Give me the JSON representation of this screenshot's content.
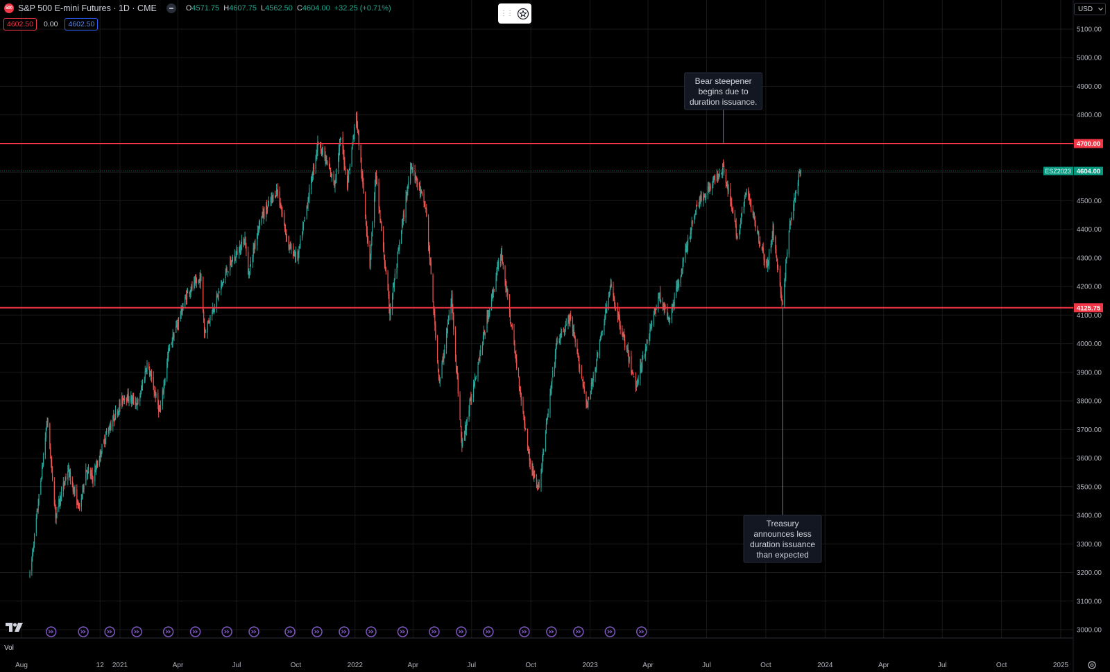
{
  "header": {
    "symbol_badge": "500",
    "title": "S&P 500 E-mini Futures · 1D · CME",
    "ohlc": {
      "o_label": "O",
      "o_value": "4571.75",
      "h_label": "H",
      "h_value": "4607.75",
      "l_label": "L",
      "l_value": "4562.50",
      "c_label": "C",
      "c_value": "4604.00",
      "change": "+32.25 (+0.71%)"
    },
    "sell_price": "4602.50",
    "spread": "0.00",
    "buy_price": "4602.50"
  },
  "currency": {
    "label": "USD"
  },
  "volume_label": "Vol",
  "colors": {
    "background": "#000000",
    "up": "#26a69a",
    "down": "#ef5350",
    "hline": "#f23645",
    "last_price": "#089981",
    "event_marker": "#7e57c2",
    "grid": "#1a1a1a"
  },
  "chart_data": {
    "type": "candlestick",
    "title": "S&P 500 E-mini Futures · 1D · CME",
    "ylim": [
      2950,
      5175
    ],
    "y_ticks": [
      "5100.00",
      "5000.00",
      "4900.00",
      "4800.00",
      "4700.00",
      "4600.00",
      "4500.00",
      "4400.00",
      "4300.00",
      "4200.00",
      "4100.00",
      "4000.00",
      "3900.00",
      "3800.00",
      "3700.00",
      "3600.00",
      "3500.00",
      "3400.00",
      "3300.00",
      "3200.00",
      "3100.00",
      "3000.00"
    ],
    "x_ticks": [
      {
        "date": "2020-08-01",
        "label": "Aug"
      },
      {
        "date": "2020-12-01",
        "label": "12"
      },
      {
        "date": "2021-01-01",
        "label": "2021"
      },
      {
        "date": "2021-04-01",
        "label": "Apr"
      },
      {
        "date": "2021-07-01",
        "label": "Jul"
      },
      {
        "date": "2021-10-01",
        "label": "Oct"
      },
      {
        "date": "2022-01-01",
        "label": "2022"
      },
      {
        "date": "2022-04-01",
        "label": "Apr"
      },
      {
        "date": "2022-07-01",
        "label": "Jul"
      },
      {
        "date": "2022-10-01",
        "label": "Oct"
      },
      {
        "date": "2023-01-01",
        "label": "2023"
      },
      {
        "date": "2023-04-01",
        "label": "Apr"
      },
      {
        "date": "2023-07-01",
        "label": "Jul"
      },
      {
        "date": "2023-10-01",
        "label": "Oct"
      },
      {
        "date": "2024-01-01",
        "label": "2024"
      },
      {
        "date": "2024-04-01",
        "label": "Apr"
      },
      {
        "date": "2024-07-01",
        "label": "Jul"
      },
      {
        "date": "2024-10-01",
        "label": "Oct"
      },
      {
        "date": "2025-01-01",
        "label": "2025"
      }
    ],
    "series_path": [
      [
        "2020-08-14",
        3190
      ],
      [
        "2020-09-02",
        3560
      ],
      [
        "2020-09-10",
        3740
      ],
      [
        "2020-09-23",
        3400
      ],
      [
        "2020-10-12",
        3560
      ],
      [
        "2020-10-30",
        3420
      ],
      [
        "2020-11-09",
        3560
      ],
      [
        "2020-11-20",
        3530
      ],
      [
        "2020-12-10",
        3680
      ],
      [
        "2021-01-08",
        3820
      ],
      [
        "2021-01-29",
        3790
      ],
      [
        "2021-02-12",
        3930
      ],
      [
        "2021-03-04",
        3760
      ],
      [
        "2021-03-18",
        3980
      ],
      [
        "2021-04-16",
        4180
      ],
      [
        "2021-05-07",
        4230
      ],
      [
        "2021-05-12",
        4040
      ],
      [
        "2021-06-15",
        4250
      ],
      [
        "2021-07-14",
        4370
      ],
      [
        "2021-07-19",
        4240
      ],
      [
        "2021-08-06",
        4430
      ],
      [
        "2021-08-31",
        4530
      ],
      [
        "2021-09-02",
        4540
      ],
      [
        "2021-09-20",
        4340
      ],
      [
        "2021-10-04",
        4300
      ],
      [
        "2021-11-05",
        4710
      ],
      [
        "2021-11-30",
        4560
      ],
      [
        "2021-12-10",
        4720
      ],
      [
        "2021-12-20",
        4560
      ],
      [
        "2022-01-03",
        4800
      ],
      [
        "2022-01-24",
        4280
      ],
      [
        "2022-02-02",
        4590
      ],
      [
        "2022-02-24",
        4110
      ],
      [
        "2022-03-29",
        4630
      ],
      [
        "2022-04-21",
        4470
      ],
      [
        "2022-05-12",
        3860
      ],
      [
        "2022-05-31",
        4160
      ],
      [
        "2022-06-16",
        3640
      ],
      [
        "2022-07-06",
        3880
      ],
      [
        "2022-08-16",
        4320
      ],
      [
        "2022-09-30",
        3580
      ],
      [
        "2022-10-13",
        3490
      ],
      [
        "2022-11-10",
        4000
      ],
      [
        "2022-12-01",
        4090
      ],
      [
        "2022-12-28",
        3780
      ],
      [
        "2023-02-02",
        4200
      ],
      [
        "2023-03-13",
        3850
      ],
      [
        "2023-04-18",
        4170
      ],
      [
        "2023-05-04",
        4080
      ],
      [
        "2023-06-15",
        4480
      ],
      [
        "2023-07-27",
        4620
      ],
      [
        "2023-08-18",
        4370
      ],
      [
        "2023-09-01",
        4540
      ],
      [
        "2023-10-03",
        4260
      ],
      [
        "2023-10-12",
        4400
      ],
      [
        "2023-10-27",
        4130
      ],
      [
        "2023-11-06",
        4400
      ],
      [
        "2023-11-20",
        4570
      ],
      [
        "2023-11-24",
        4604
      ]
    ],
    "last_close": 4604.0,
    "last_label": "ESZ2023",
    "horizontal_lines": [
      {
        "value": 4700.0,
        "label": "4700.00"
      },
      {
        "value": 4125.75,
        "label": "4125.75"
      }
    ],
    "annotations": [
      {
        "text": [
          "Bear steepener",
          "begins due to",
          "duration issuance."
        ],
        "date": "2023-07-27",
        "anchor_value": 4700,
        "box": "above"
      },
      {
        "text": [
          "Treasury",
          "announces less",
          "duration issuance",
          "than expected"
        ],
        "date": "2023-10-27",
        "anchor_value": 4125.75,
        "box": "below"
      }
    ],
    "event_marker_dates": [
      "2020-09-16",
      "2020-11-05",
      "2020-12-16",
      "2021-01-27",
      "2021-03-17",
      "2021-04-28",
      "2021-06-16",
      "2021-07-28",
      "2021-09-22",
      "2021-11-03",
      "2021-12-15",
      "2022-01-26",
      "2022-03-16",
      "2022-05-04",
      "2022-06-15",
      "2022-07-27",
      "2022-09-21",
      "2022-11-02",
      "2022-12-14",
      "2023-02-01",
      "2023-03-22"
    ]
  }
}
